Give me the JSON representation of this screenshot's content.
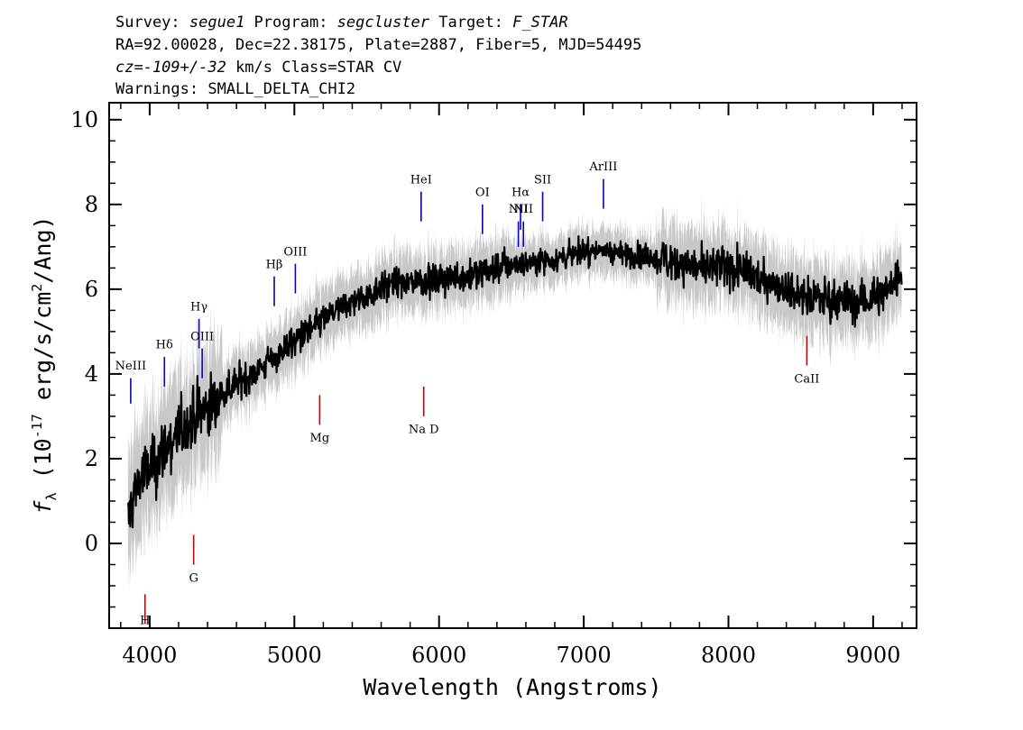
{
  "header": {
    "line1_prefix": "Survey: ",
    "survey": "segue1",
    "line1_mid": " Program: ",
    "program": "segcluster",
    "line1_target": " Target: ",
    "target": "F_STAR",
    "line2": "RA=92.00028, Dec=22.38175, Plate=2887, Fiber=5, MJD=54495",
    "line3_cz": "cz=-109+/-32",
    "line3_rest": " km/s Class=STAR CV",
    "line4": "Warnings: SMALL_DELTA_CHI2"
  },
  "chart_data": {
    "type": "line",
    "xlabel": "Wavelength (Angstroms)",
    "ylabel_main": "f",
    "ylabel_sub": "λ",
    "ylabel_units": "(10",
    "ylabel_exp": "-17",
    "ylabel_units_tail": " erg/s/cm",
    "ylabel_exp2": "2",
    "ylabel_close": "/Ang)",
    "xlim": [
      3720,
      9300
    ],
    "ylim": [
      -2.0,
      10.4
    ],
    "x_ticks": [
      4000,
      5000,
      6000,
      7000,
      8000,
      9000
    ],
    "x_tick_labels": [
      "4000",
      "5000",
      "6000",
      "7000",
      "8000",
      "9000"
    ],
    "y_ticks": [
      0,
      2,
      4,
      6,
      8,
      10
    ],
    "y_tick_labels": [
      "0",
      "2",
      "4",
      "6",
      "8",
      "10"
    ],
    "series": [
      {
        "role": "flux",
        "color": "#000000",
        "x": [
          3850,
          3900,
          3950,
          4000,
          4100,
          4200,
          4300,
          4400,
          4500,
          4600,
          4700,
          4800,
          4900,
          5000,
          5100,
          5200,
          5300,
          5400,
          5500,
          5600,
          5700,
          5800,
          5900,
          6000,
          6100,
          6200,
          6300,
          6400,
          6500,
          6600,
          6700,
          6800,
          6900,
          7000,
          7100,
          7200,
          7300,
          7400,
          7500,
          7600,
          7700,
          7800,
          7900,
          8000,
          8100,
          8200,
          8300,
          8400,
          8500,
          8600,
          8700,
          8800,
          8900,
          9000,
          9100,
          9200
        ],
        "values": [
          0.5,
          1.3,
          1.6,
          1.7,
          2.2,
          2.6,
          2.9,
          3.2,
          3.5,
          3.8,
          4.0,
          4.2,
          4.5,
          4.8,
          5.0,
          5.3,
          5.5,
          5.7,
          5.8,
          6.1,
          6.1,
          6.2,
          6.2,
          6.2,
          6.3,
          6.3,
          6.4,
          6.5,
          6.6,
          6.6,
          6.7,
          6.7,
          6.8,
          6.9,
          6.9,
          6.9,
          6.8,
          6.8,
          6.7,
          6.7,
          6.6,
          6.5,
          6.5,
          6.5,
          6.4,
          6.3,
          6.2,
          6.0,
          5.9,
          5.8,
          5.8,
          5.7,
          5.7,
          5.8,
          6.0,
          6.4
        ]
      }
    ],
    "emission_lines": [
      {
        "label": "NeIII",
        "x": 3869,
        "y_top": 3.9,
        "y_bottom": 3.3,
        "label_y": 4.1,
        "color": "#0000cc"
      },
      {
        "label": "Hδ",
        "x": 4102,
        "y_top": 4.4,
        "y_bottom": 3.7,
        "label_y": 4.6,
        "color": "#0000cc"
      },
      {
        "label": "Hγ",
        "x": 4341,
        "y_top": 5.3,
        "y_bottom": 4.6,
        "label_y": 5.5,
        "color": "#0000cc"
      },
      {
        "label": "OIII",
        "x": 4363,
        "y_top": 4.6,
        "y_bottom": 3.9,
        "label_y": 4.8,
        "color": "#0000cc"
      },
      {
        "label": "Hβ",
        "x": 4861,
        "y_top": 6.3,
        "y_bottom": 5.6,
        "label_y": 6.5,
        "color": "#0000cc"
      },
      {
        "label": "OIII",
        "x": 5007,
        "y_top": 6.6,
        "y_bottom": 5.9,
        "label_y": 6.8,
        "color": "#0000cc"
      },
      {
        "label": "HeI",
        "x": 5876,
        "y_top": 8.3,
        "y_bottom": 7.6,
        "label_y": 8.5,
        "color": "#0000cc"
      },
      {
        "label": "OI",
        "x": 6300,
        "y_top": 8.0,
        "y_bottom": 7.3,
        "label_y": 8.2,
        "color": "#0000cc"
      },
      {
        "label": "NII",
        "x": 6548,
        "y_top": 7.6,
        "y_bottom": 7.0,
        "label_y": 7.8,
        "color": "#0000cc"
      },
      {
        "label": "Hα",
        "x": 6563,
        "y_top": 8.0,
        "y_bottom": 7.4,
        "label_y": 8.2,
        "color": "#0000cc"
      },
      {
        "label": "NII",
        "x": 6583,
        "y_top": 7.6,
        "y_bottom": 7.0,
        "label_y": 7.8,
        "color": "#0000cc"
      },
      {
        "label": "SII",
        "x": 6716,
        "y_top": 8.3,
        "y_bottom": 7.6,
        "label_y": 8.5,
        "color": "#0000cc"
      },
      {
        "label": "ArIII",
        "x": 7136,
        "y_top": 8.6,
        "y_bottom": 7.9,
        "label_y": 8.8,
        "color": "#0000cc"
      }
    ],
    "absorption_lines": [
      {
        "label": "H",
        "x": 3968,
        "y_top": -1.2,
        "y_bottom": -1.9,
        "label_y": -1.9,
        "color": "#cc0000"
      },
      {
        "label": "G",
        "x": 4304,
        "y_top": 0.2,
        "y_bottom": -0.5,
        "label_y": -0.9,
        "color": "#cc0000"
      },
      {
        "label": "Mg",
        "x": 5175,
        "y_top": 3.5,
        "y_bottom": 2.8,
        "label_y": 2.4,
        "color": "#cc0000"
      },
      {
        "label": "Na D",
        "x": 5894,
        "y_top": 3.7,
        "y_bottom": 3.0,
        "label_y": 2.6,
        "color": "#cc0000"
      },
      {
        "label": "CaII",
        "x": 8542,
        "y_top": 4.9,
        "y_bottom": 4.2,
        "label_y": 3.8,
        "color": "#cc0000"
      }
    ]
  }
}
